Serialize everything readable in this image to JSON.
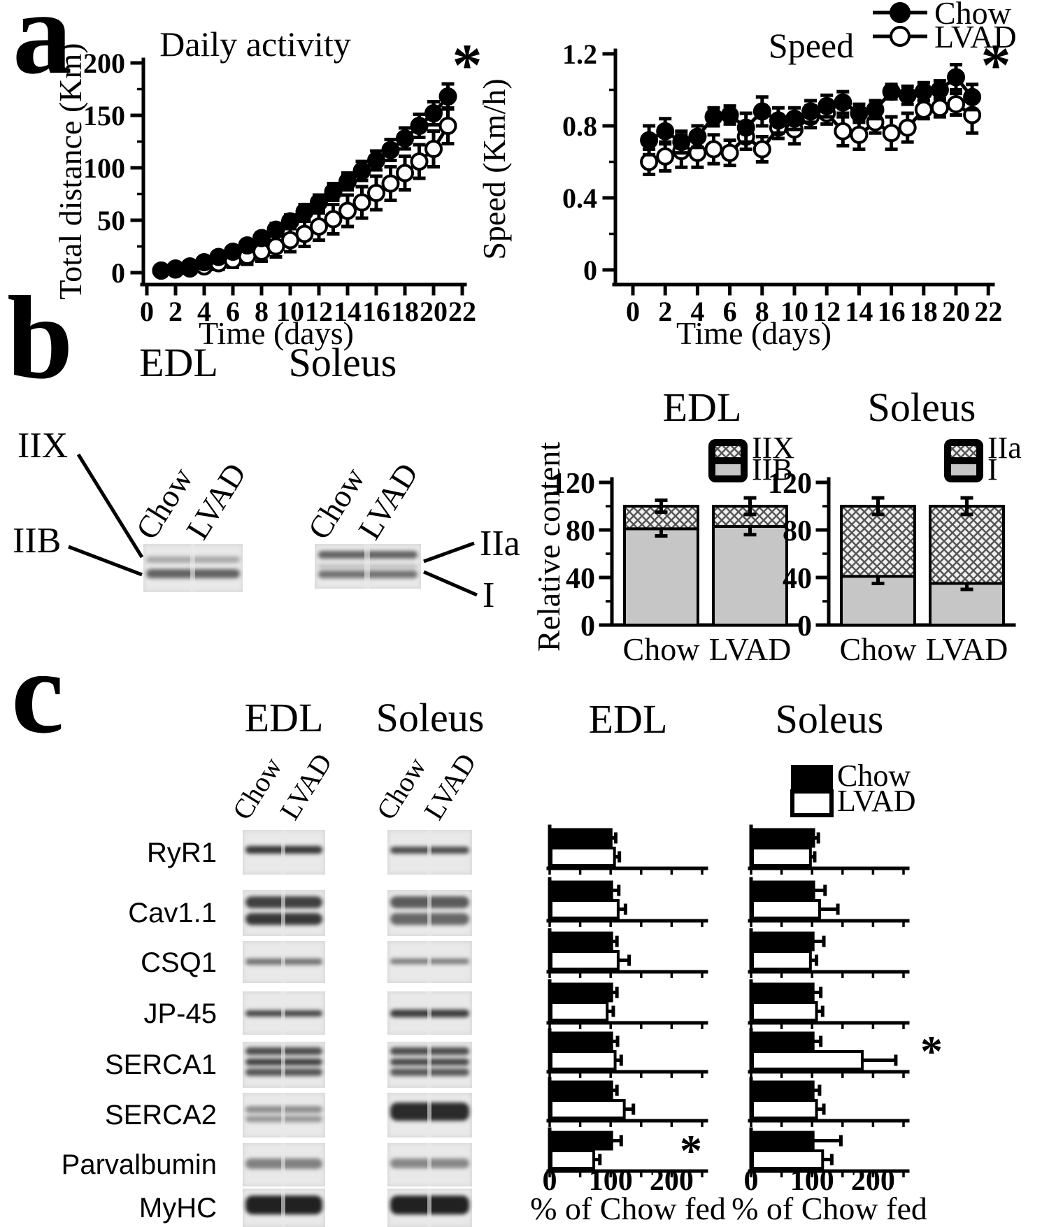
{
  "panels": {
    "a": "a",
    "b": "b",
    "c": "c"
  },
  "colors": {
    "ink": "#000000",
    "bar_gray": "#c6c6c6",
    "blot_bg": "#e9e9e9",
    "white": "#ffffff"
  },
  "panel_b": {
    "headers": [
      "EDL",
      "Soleus"
    ],
    "lanes": [
      "Chow",
      "LVAD"
    ],
    "edl_band_labels": [
      "IIX",
      "IIB"
    ],
    "soleus_band_labels": [
      "IIa",
      "I"
    ]
  },
  "panel_c": {
    "headers": [
      "EDL",
      "Soleus"
    ],
    "lanes": [
      "Chow",
      "LVAD"
    ],
    "legend": [
      "Chow",
      "LVAD"
    ],
    "proteins": [
      "RyR1",
      "Cav1.1",
      "CSQ1",
      "JP-45",
      "SERCA1",
      "SERCA2",
      "Parvalbumin",
      "MyHC"
    ],
    "xlabel": "% of Chow fed"
  },
  "chart_data": [
    {
      "id": "daily_activity",
      "type": "line",
      "title": "Daily activity",
      "xlabel": "Time (days)",
      "ylabel": "Total distance (Km)",
      "xlim": [
        0,
        22
      ],
      "ylim": [
        0,
        200
      ],
      "xticks": [
        0,
        2,
        4,
        6,
        8,
        10,
        12,
        14,
        16,
        18,
        20,
        22
      ],
      "xtick_labels": [
        "0",
        "2",
        "4",
        "6",
        "8",
        "10",
        "12",
        "14",
        "16",
        "18",
        "20",
        "22"
      ],
      "yticks": [
        0,
        50,
        100,
        150,
        200
      ],
      "ytick_labels": [
        "0",
        "50",
        "100",
        "150",
        "200"
      ],
      "yminor": [
        25,
        75,
        125,
        175
      ],
      "significance": "*",
      "x": [
        1,
        2,
        3,
        4,
        5,
        6,
        7,
        8,
        9,
        10,
        11,
        12,
        13,
        14,
        15,
        16,
        17,
        18,
        19,
        20,
        21
      ],
      "series": [
        {
          "name": "Chow",
          "marker": "filled",
          "values": [
            2,
            4,
            6,
            10,
            15,
            20,
            26,
            33,
            41,
            49,
            58,
            67,
            77,
            87,
            97,
            107,
            117,
            128,
            140,
            152,
            168
          ],
          "errors": [
            3,
            3,
            3,
            4,
            4,
            5,
            5,
            5,
            6,
            6,
            7,
            7,
            8,
            8,
            9,
            9,
            10,
            10,
            11,
            11,
            12
          ]
        },
        {
          "name": "LVAD",
          "marker": "open",
          "values": [
            2,
            3,
            4,
            6,
            9,
            12,
            16,
            20,
            25,
            31,
            37,
            44,
            51,
            59,
            67,
            76,
            85,
            95,
            106,
            118,
            140
          ],
          "errors": [
            3,
            3,
            4,
            5,
            6,
            7,
            8,
            9,
            10,
            11,
            12,
            13,
            14,
            15,
            15,
            16,
            16,
            16,
            16,
            17,
            17
          ]
        }
      ]
    },
    {
      "id": "speed",
      "type": "line",
      "title": "Speed",
      "xlabel": "Time (days)",
      "ylabel": "Speed (Km/h)",
      "xlim": [
        0,
        22
      ],
      "ylim": [
        0,
        1.2
      ],
      "xticks": [
        0,
        2,
        4,
        6,
        8,
        10,
        12,
        14,
        16,
        18,
        20,
        22
      ],
      "xtick_labels": [
        "0",
        "2",
        "4",
        "6",
        "8",
        "10",
        "12",
        "14",
        "16",
        "18",
        "20",
        "22"
      ],
      "yticks": [
        0,
        0.4,
        0.8,
        1.2
      ],
      "ytick_labels": [
        "0",
        "0.4",
        "0.8",
        "1.2"
      ],
      "yminor": [
        0.2,
        0.6,
        1.0
      ],
      "significance": "*",
      "x": [
        1,
        2,
        3,
        4,
        5,
        6,
        7,
        8,
        9,
        10,
        11,
        12,
        13,
        14,
        15,
        16,
        17,
        18,
        19,
        20,
        21
      ],
      "series": [
        {
          "name": "Chow",
          "marker": "filled",
          "values": [
            0.72,
            0.77,
            0.71,
            0.74,
            0.85,
            0.86,
            0.79,
            0.88,
            0.83,
            0.84,
            0.88,
            0.91,
            0.93,
            0.87,
            0.89,
            0.99,
            0.97,
            0.99,
            1.0,
            1.07,
            0.96
          ],
          "errors": [
            0.08,
            0.07,
            0.06,
            0.06,
            0.05,
            0.05,
            0.08,
            0.08,
            0.07,
            0.06,
            0.06,
            0.06,
            0.06,
            0.05,
            0.05,
            0.04,
            0.05,
            0.05,
            0.05,
            0.07,
            0.07
          ]
        },
        {
          "name": "LVAD",
          "marker": "open",
          "values": [
            0.6,
            0.63,
            0.66,
            0.65,
            0.67,
            0.65,
            0.74,
            0.67,
            0.79,
            0.78,
            0.85,
            0.87,
            0.77,
            0.75,
            0.82,
            0.76,
            0.79,
            0.89,
            0.9,
            0.92,
            0.86
          ],
          "errors": [
            0.07,
            0.08,
            0.09,
            0.08,
            0.08,
            0.07,
            0.07,
            0.07,
            0.06,
            0.08,
            0.06,
            0.06,
            0.08,
            0.08,
            0.06,
            0.09,
            0.08,
            0.05,
            0.05,
            0.06,
            0.1
          ]
        }
      ]
    },
    {
      "id": "edl_fiber_content",
      "type": "stacked_bar",
      "title": "EDL",
      "ylabel": "Relative content",
      "categories": [
        "Chow",
        "LVAD"
      ],
      "yticks": [
        0,
        40,
        80,
        120
      ],
      "ytick_labels": [
        "0",
        "40",
        "80",
        "120"
      ],
      "yminor": [
        20,
        60,
        100
      ],
      "legend": [
        "IIX",
        "IIB"
      ],
      "segments": [
        {
          "name": "IIB",
          "values": [
            81,
            83
          ],
          "errors": [
            6,
            7
          ]
        },
        {
          "name": "IIX",
          "values": [
            19,
            17
          ],
          "errors": [
            5,
            7
          ]
        }
      ]
    },
    {
      "id": "soleus_fiber_content",
      "type": "stacked_bar",
      "title": "Soleus",
      "ylabel": "Relative content",
      "categories": [
        "Chow",
        "LVAD"
      ],
      "yticks": [
        0,
        40,
        80,
        120
      ],
      "ytick_labels": [
        "0",
        "40",
        "80",
        "120"
      ],
      "yminor": [
        20,
        60,
        100
      ],
      "legend": [
        "IIa",
        "I"
      ],
      "segments": [
        {
          "name": "I",
          "values": [
            41,
            35
          ],
          "errors": [
            6,
            5
          ]
        },
        {
          "name": "IIa",
          "values": [
            59,
            65
          ],
          "errors": [
            7,
            7
          ]
        }
      ]
    },
    {
      "id": "edl_proteins",
      "type": "hbar_grid",
      "title": "EDL",
      "xlabel": "% of Chow fed",
      "xticks": [
        0,
        50,
        100,
        150,
        200,
        250
      ],
      "xnum_values": [
        0,
        100,
        200
      ],
      "xnum_labels": [
        "0",
        "100",
        "200"
      ],
      "series_legend": [
        "Chow",
        "LVAD"
      ],
      "rows": [
        {
          "protein": "RyR1",
          "chow": 99,
          "chow_err": 7,
          "lvad": 104,
          "lvad_err": 8,
          "sig": false
        },
        {
          "protein": "Cav1.1",
          "chow": 100,
          "chow_err": 11,
          "lvad": 110,
          "lvad_err": 12,
          "sig": false
        },
        {
          "protein": "CSQ1",
          "chow": 100,
          "chow_err": 8,
          "lvad": 110,
          "lvad_err": 18,
          "sig": false
        },
        {
          "protein": "JP-45",
          "chow": 100,
          "chow_err": 8,
          "lvad": 92,
          "lvad_err": 10,
          "sig": false
        },
        {
          "protein": "SERCA1",
          "chow": 100,
          "chow_err": 9,
          "lvad": 105,
          "lvad_err": 10,
          "sig": false
        },
        {
          "protein": "SERCA2",
          "chow": 100,
          "chow_err": 8,
          "lvad": 120,
          "lvad_err": 15,
          "sig": false
        },
        {
          "protein": "Parvalbumin",
          "chow": 100,
          "chow_err": 15,
          "lvad": 70,
          "lvad_err": 10,
          "sig": true
        }
      ]
    },
    {
      "id": "soleus_proteins",
      "type": "hbar_grid",
      "title": "Soleus",
      "xlabel": "% of Chow fed",
      "xticks": [
        0,
        50,
        100,
        150,
        200,
        250
      ],
      "xnum_values": [
        0,
        100,
        200
      ],
      "xnum_labels": [
        "0",
        "100",
        "200"
      ],
      "series_legend": [
        "Chow",
        "LVAD"
      ],
      "rows": [
        {
          "protein": "RyR1",
          "chow": 101,
          "chow_err": 7,
          "lvad": 95,
          "lvad_err": 7,
          "sig": false
        },
        {
          "protein": "Cav1.1",
          "chow": 101,
          "chow_err": 18,
          "lvad": 110,
          "lvad_err": 30,
          "sig": false
        },
        {
          "protein": "CSQ1",
          "chow": 100,
          "chow_err": 17,
          "lvad": 95,
          "lvad_err": 10,
          "sig": false
        },
        {
          "protein": "JP-45",
          "chow": 100,
          "chow_err": 12,
          "lvad": 105,
          "lvad_err": 10,
          "sig": false
        },
        {
          "protein": "SERCA1",
          "chow": 100,
          "chow_err": 12,
          "lvad": 180,
          "lvad_err": 55,
          "sig": true
        },
        {
          "protein": "SERCA2",
          "chow": 100,
          "chow_err": 10,
          "lvad": 105,
          "lvad_err": 12,
          "sig": false
        },
        {
          "protein": "Parvalbumin",
          "chow": 100,
          "chow_err": 45,
          "lvad": 115,
          "lvad_err": 15,
          "sig": false
        }
      ]
    }
  ]
}
